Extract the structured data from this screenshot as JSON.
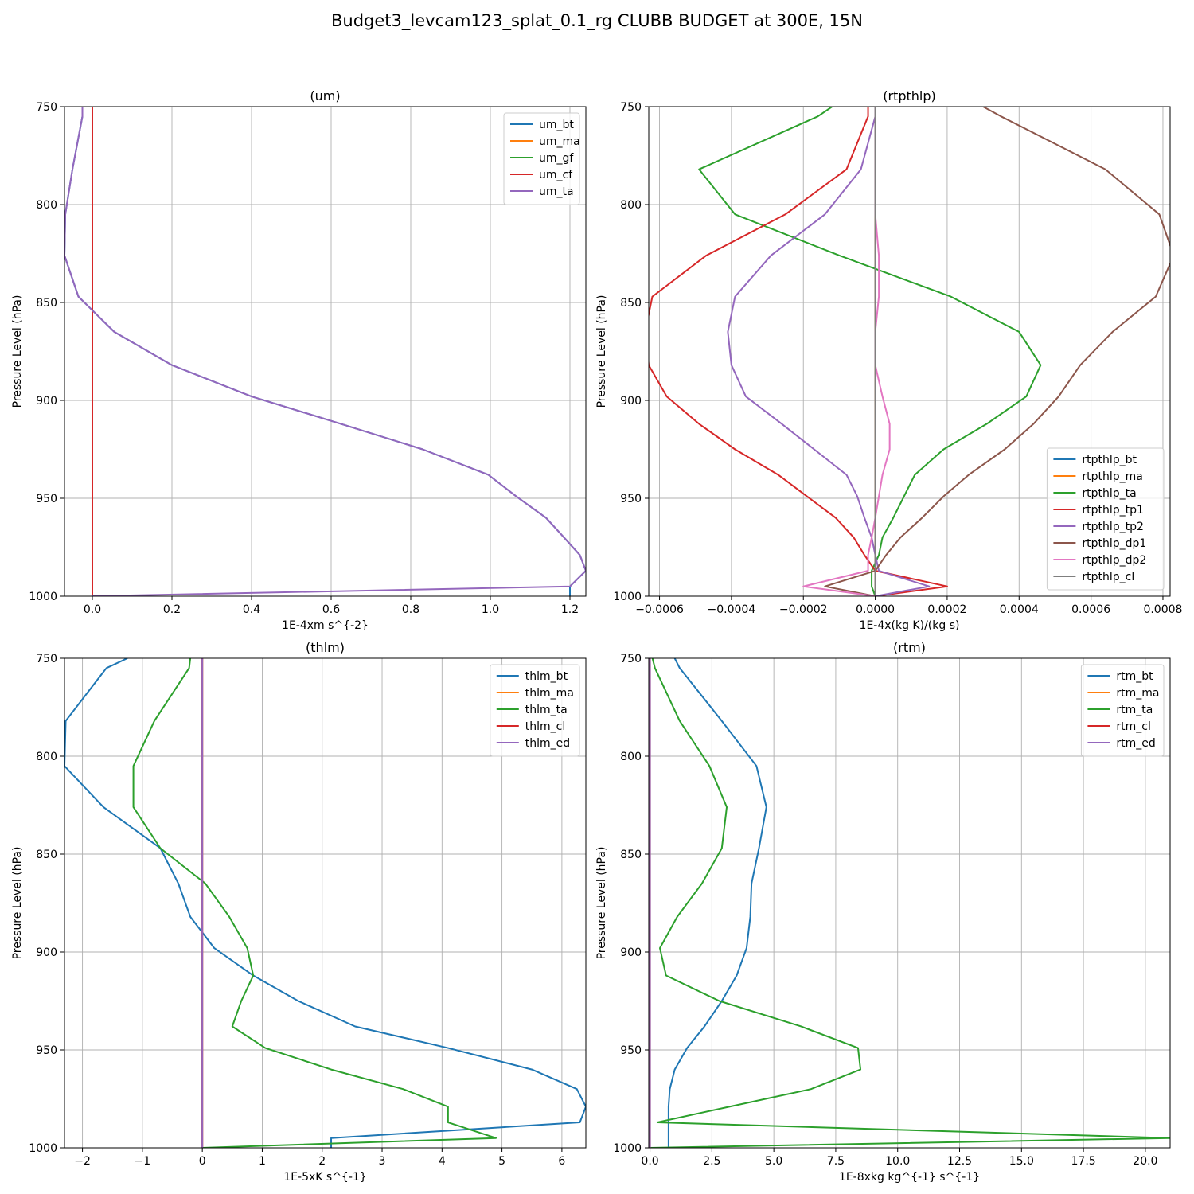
{
  "figure": {
    "title": "Budget3_levcam123_splat_0.1_rg CLUBB BUDGET at 300E, 15N"
  },
  "chart_data": [
    {
      "type": "line",
      "title": "(um)",
      "xlabel": "1E-4xm s^{-2}",
      "ylabel": "Pressure Level (hPa)",
      "xlim": [
        -0.07,
        1.24
      ],
      "ylim": [
        1000,
        750
      ],
      "xticks": [
        0.0,
        0.2,
        0.4,
        0.6,
        0.8,
        1.0,
        1.2
      ],
      "xtick_labels": [
        "0.0",
        "0.2",
        "0.4",
        "0.6",
        "0.8",
        "1.0",
        "1.2"
      ],
      "yticks": [
        750,
        800,
        850,
        900,
        950,
        1000
      ],
      "ytick_labels": [
        "750",
        "800",
        "850",
        "900",
        "950",
        "1000"
      ],
      "grid": true,
      "legend": "upper right",
      "levels": [
        750,
        755,
        782,
        805,
        826,
        847,
        865,
        882,
        898,
        912,
        925,
        938,
        949,
        960,
        970,
        979,
        987,
        995,
        1000
      ],
      "series": [
        {
          "name": "um_bt",
          "color": "#1f77b4",
          "values": [
            -0.025,
            -0.025,
            -0.05,
            -0.068,
            -0.07,
            -0.035,
            0.055,
            0.2,
            0.4,
            0.625,
            0.83,
            0.995,
            1.065,
            1.14,
            1.185,
            1.225,
            1.24,
            1.2,
            1.2
          ]
        },
        {
          "name": "um_ma",
          "color": "#ff7f0e",
          "values": [
            0,
            0,
            0,
            0,
            0,
            0,
            0,
            0,
            0,
            0,
            0,
            0,
            0,
            0,
            0,
            0,
            0,
            0,
            0
          ]
        },
        {
          "name": "um_gf",
          "color": "#2ca02c",
          "values": [
            0,
            0,
            0,
            0,
            0,
            0,
            0,
            0,
            0,
            0,
            0,
            0,
            0,
            0,
            0,
            0,
            0,
            0,
            0
          ]
        },
        {
          "name": "um_cf",
          "color": "#d62728",
          "values": [
            0,
            0,
            0,
            0,
            0,
            0,
            0,
            0,
            0,
            0,
            0,
            0,
            0,
            0,
            0,
            0,
            0,
            0,
            0
          ]
        },
        {
          "name": "um_ta",
          "color": "#9467bd",
          "values": [
            -0.025,
            -0.025,
            -0.05,
            -0.068,
            -0.07,
            -0.035,
            0.055,
            0.2,
            0.4,
            0.625,
            0.83,
            0.995,
            1.065,
            1.14,
            1.185,
            1.225,
            1.24,
            1.2,
            0.0
          ]
        }
      ]
    },
    {
      "type": "line",
      "title": "(rtpthlp)",
      "xlabel": "1E-4x(kg K)/(kg s)",
      "ylabel": "Pressure Level (hPa)",
      "xlim": [
        -0.00063,
        0.00082
      ],
      "ylim": [
        1000,
        750
      ],
      "xticks": [
        -0.0006,
        -0.0004,
        -0.0002,
        0.0,
        0.0002,
        0.0004,
        0.0006,
        0.0008
      ],
      "xtick_labels": [
        "−0.0006",
        "−0.0004",
        "−0.0002",
        "0.0000",
        "0.0002",
        "0.0004",
        "0.0006",
        "0.0008"
      ],
      "yticks": [
        750,
        800,
        850,
        900,
        950,
        1000
      ],
      "ytick_labels": [
        "750",
        "800",
        "850",
        "900",
        "950",
        "1000"
      ],
      "grid": true,
      "legend": "lower right",
      "levels": [
        750,
        755,
        782,
        805,
        826,
        847,
        865,
        882,
        898,
        912,
        925,
        938,
        949,
        960,
        970,
        979,
        987,
        995,
        1000
      ],
      "series": [
        {
          "name": "rtpthlp_bt",
          "color": "#1f77b4",
          "values": [
            0,
            0,
            0,
            0,
            0,
            0,
            0,
            0,
            0,
            0,
            0,
            0,
            0,
            0,
            0,
            0,
            0,
            0,
            0
          ]
        },
        {
          "name": "rtpthlp_ma",
          "color": "#ff7f0e",
          "values": [
            0,
            0,
            0,
            0,
            0,
            0,
            0,
            0,
            0,
            0,
            0,
            0,
            0,
            0,
            0,
            0,
            0,
            0,
            0
          ]
        },
        {
          "name": "rtpthlp_ta",
          "color": "#2ca02c",
          "values": [
            -0.00012,
            -0.00016,
            -0.00049,
            -0.00039,
            -0.0001,
            0.00021,
            0.0004,
            0.00046,
            0.00042,
            0.00031,
            0.00019,
            0.00011,
            8e-05,
            5e-05,
            2e-05,
            1e-05,
            -1e-05,
            -1e-05,
            0.0
          ]
        },
        {
          "name": "rtpthlp_tp1",
          "color": "#d62728",
          "values": [
            -2e-05,
            -2e-05,
            -8e-05,
            -0.00025,
            -0.00047,
            -0.00062,
            -0.00064,
            -0.00063,
            -0.00058,
            -0.00049,
            -0.00039,
            -0.00027,
            -0.00019,
            -0.00011,
            -6e-05,
            -3e-05,
            0.0,
            0.0002,
            0.0
          ]
        },
        {
          "name": "rtpthlp_tp2",
          "color": "#9467bd",
          "values": [
            0.0,
            -0.0,
            -4e-05,
            -0.00014,
            -0.00029,
            -0.00039,
            -0.00041,
            -0.0004,
            -0.00036,
            -0.00026,
            -0.00017,
            -8e-05,
            -5e-05,
            -3e-05,
            -1e-05,
            0.0,
            1e-05,
            0.00015,
            0.0
          ]
        },
        {
          "name": "rtpthlp_dp1",
          "color": "#8c564b",
          "values": [
            0.0003,
            0.00035,
            0.00064,
            0.00079,
            0.00083,
            0.00078,
            0.00066,
            0.00057,
            0.00051,
            0.00044,
            0.00036,
            0.00026,
            0.00019,
            0.00013,
            7e-05,
            3e-05,
            0.0,
            -0.00014,
            0.0
          ]
        },
        {
          "name": "rtpthlp_dp2",
          "color": "#e377c2",
          "values": [
            0.0,
            0.0,
            0.0,
            0.0,
            1e-05,
            1e-05,
            0.0,
            0.0,
            2e-05,
            4e-05,
            4e-05,
            2e-05,
            1e-05,
            0.0,
            -1e-05,
            -2e-05,
            -2e-05,
            -0.0002,
            0.0
          ]
        },
        {
          "name": "rtpthlp_cl",
          "color": "#7f7f7f",
          "values": [
            0,
            0,
            0,
            0,
            0,
            0,
            0,
            0,
            0,
            0,
            0,
            0,
            0,
            0,
            0,
            0,
            0,
            0,
            0
          ]
        }
      ]
    },
    {
      "type": "line",
      "title": "(thlm)",
      "xlabel": "1E-5xK s^{-1}",
      "ylabel": "Pressure Level (hPa)",
      "xlim": [
        -2.3,
        6.4
      ],
      "ylim": [
        1000,
        750
      ],
      "xticks": [
        -2,
        -1,
        0,
        1,
        2,
        3,
        4,
        5,
        6
      ],
      "xtick_labels": [
        "−2",
        "−1",
        "0",
        "1",
        "2",
        "3",
        "4",
        "5",
        "6"
      ],
      "yticks": [
        750,
        800,
        850,
        900,
        950,
        1000
      ],
      "ytick_labels": [
        "750",
        "800",
        "850",
        "900",
        "950",
        "1000"
      ],
      "grid": true,
      "legend": "upper right",
      "levels": [
        750,
        755,
        782,
        805,
        826,
        847,
        865,
        882,
        898,
        912,
        925,
        938,
        949,
        960,
        970,
        979,
        987,
        995,
        1000
      ],
      "series": [
        {
          "name": "thlm_bt",
          "color": "#1f77b4",
          "values": [
            -1.25,
            -1.6,
            -2.28,
            -2.3,
            -1.65,
            -0.7,
            -0.4,
            -0.2,
            0.2,
            0.85,
            1.6,
            2.55,
            4.1,
            5.5,
            6.25,
            6.4,
            6.3,
            2.15,
            2.15
          ]
        },
        {
          "name": "thlm_ma",
          "color": "#ff7f0e",
          "values": [
            0,
            0,
            0,
            0,
            0,
            0,
            0,
            0,
            0,
            0,
            0,
            0,
            0,
            0,
            0,
            0,
            0,
            0,
            0
          ]
        },
        {
          "name": "thlm_ta",
          "color": "#2ca02c",
          "values": [
            -0.2,
            -0.22,
            -0.8,
            -1.15,
            -1.15,
            -0.7,
            0.05,
            0.45,
            0.75,
            0.85,
            0.65,
            0.5,
            1.05,
            2.15,
            3.35,
            4.1,
            4.1,
            4.9,
            0.0
          ]
        },
        {
          "name": "thlm_cl",
          "color": "#d62728",
          "values": [
            0,
            0,
            0,
            0,
            0,
            0,
            0,
            0,
            0,
            0,
            0,
            0,
            0,
            0,
            0,
            0,
            0,
            0,
            0
          ]
        },
        {
          "name": "thlm_ed",
          "color": "#9467bd",
          "values": [
            0,
            0,
            0,
            0,
            0,
            0,
            0,
            0,
            0,
            0,
            0,
            0,
            0,
            0,
            0,
            0,
            0,
            0,
            0
          ]
        }
      ]
    },
    {
      "type": "line",
      "title": "(rtm)",
      "xlabel": "1E-8xkg kg^{-1} s^{-1}",
      "ylabel": "Pressure Level (hPa)",
      "xlim": [
        -0.05,
        21.0
      ],
      "ylim": [
        1000,
        750
      ],
      "xticks": [
        0.0,
        2.5,
        5.0,
        7.5,
        10.0,
        12.5,
        15.0,
        17.5,
        20.0
      ],
      "xtick_labels": [
        "0.0",
        "2.5",
        "5.0",
        "7.5",
        "10.0",
        "12.5",
        "15.0",
        "17.5",
        "20.0"
      ],
      "yticks": [
        750,
        800,
        850,
        900,
        950,
        1000
      ],
      "ytick_labels": [
        "750",
        "800",
        "850",
        "900",
        "950",
        "1000"
      ],
      "grid": true,
      "legend": "upper right",
      "levels": [
        750,
        755,
        782,
        805,
        826,
        847,
        865,
        882,
        898,
        912,
        925,
        938,
        949,
        960,
        970,
        979,
        987,
        995,
        1000
      ],
      "series": [
        {
          "name": "rtm_bt",
          "color": "#1f77b4",
          "values": [
            1.0,
            1.2,
            2.9,
            4.3,
            4.7,
            4.4,
            4.1,
            4.05,
            3.9,
            3.5,
            2.9,
            2.2,
            1.5,
            1.0,
            0.8,
            0.75,
            0.75,
            0.75,
            0.75
          ]
        },
        {
          "name": "rtm_ma",
          "color": "#ff7f0e",
          "values": [
            0,
            0,
            0,
            0,
            0,
            0,
            0,
            0,
            0,
            0,
            0,
            0,
            0,
            0,
            0,
            0,
            0,
            0,
            0
          ]
        },
        {
          "name": "rtm_ta",
          "color": "#2ca02c",
          "values": [
            0.1,
            0.2,
            1.2,
            2.4,
            3.1,
            2.9,
            2.1,
            1.1,
            0.4,
            0.65,
            2.8,
            6.1,
            8.4,
            8.5,
            6.5,
            3.2,
            0.3,
            21.0,
            0.0
          ]
        },
        {
          "name": "rtm_cl",
          "color": "#d62728",
          "values": [
            0,
            0,
            0,
            0,
            0,
            0,
            0,
            0,
            0,
            0,
            0,
            0,
            0,
            0,
            0,
            0,
            0,
            0,
            0
          ]
        },
        {
          "name": "rtm_ed",
          "color": "#9467bd",
          "values": [
            0,
            0,
            0,
            0,
            0,
            0,
            0,
            0,
            0,
            0,
            0,
            0,
            0,
            0,
            0,
            0,
            0,
            0,
            0
          ]
        }
      ]
    }
  ]
}
